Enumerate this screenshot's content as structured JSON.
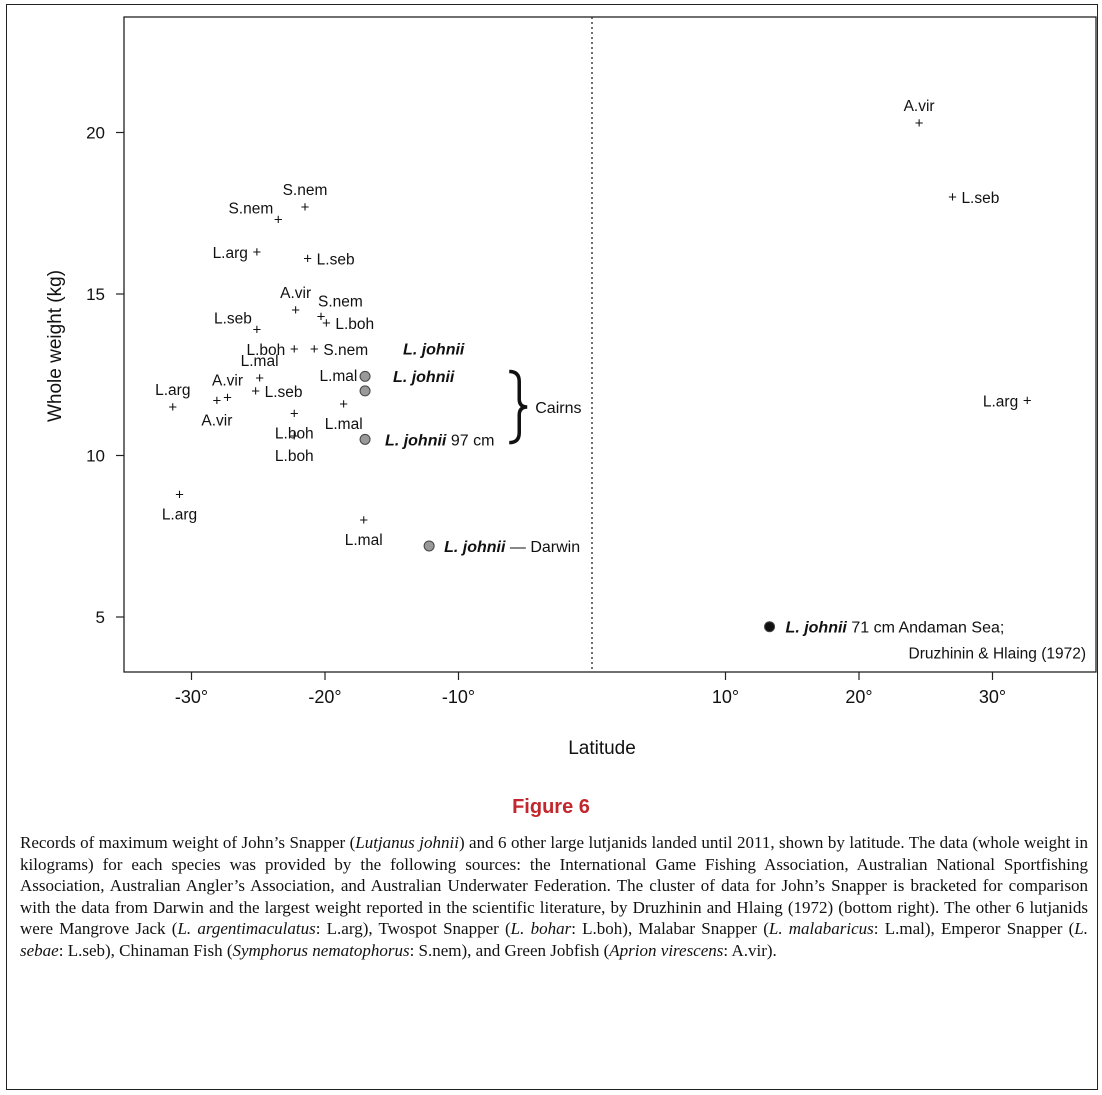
{
  "figure": {
    "title": "Figure 6",
    "caption_parts": [
      {
        "t": "Records of maximum weight of John’s Snapper ("
      },
      {
        "t": "Lutjanus johnii",
        "i": true
      },
      {
        "t": ") and 6 other large lutjanids landed until 2011, shown by latitude. The data (whole weight in kilograms) for each species was provided by the following sources: the International Game Fishing Association, Australian National Sportfishing Association, Australian Angler’s Association, and Australian Underwater Federation. The cluster of data for John’s Snapper is bracketed for comparison with the data from Darwin and the largest weight reported in the scientific literature, by Druzhinin and Hlaing (1972) (bottom right). The other 6 lutjanids were Mangrove Jack ("
      },
      {
        "t": "L. argentimaculatus",
        "i": true
      },
      {
        "t": ": L.arg), Twospot Snapper ("
      },
      {
        "t": "L. bohar",
        "i": true
      },
      {
        "t": ": L.boh), Malabar Snapper ("
      },
      {
        "t": "L. malabaricus",
        "i": true
      },
      {
        "t": ": L.mal), Emperor Snapper ("
      },
      {
        "t": "L. sebae",
        "i": true
      },
      {
        "t": ": L.seb), Chinaman Fish ("
      },
      {
        "t": "Symphorus nematophorus",
        "i": true
      },
      {
        "t": ": S.nem), and Green Jobfish ("
      },
      {
        "t": "Aprion virescens",
        "i": true
      },
      {
        "t": ": A.vir)."
      }
    ]
  },
  "chart_data": {
    "type": "scatter",
    "xlabel": "Latitude",
    "ylabel": "Whole weight (kg)",
    "xlim": [
      -35,
      35
    ],
    "ylim": [
      3.3,
      23
    ],
    "x_ticks": [
      -30,
      -20,
      -10,
      10,
      20,
      30
    ],
    "x_tick_labels": [
      "-30°",
      "-20°",
      "-10°",
      "10°",
      "20°",
      "30°"
    ],
    "y_ticks": [
      5,
      10,
      15,
      20
    ],
    "y_tick_labels": [
      "5",
      "10",
      "15",
      "20"
    ],
    "reference_line_x": 0,
    "grid": false,
    "other_species": [
      {
        "label": "A.vir",
        "x": 24.5,
        "y": 20.3,
        "pos": "above"
      },
      {
        "label": "L.seb",
        "x": 27.0,
        "y": 18.0,
        "pos": "right"
      },
      {
        "label": "L.arg",
        "x": 32.6,
        "y": 11.7,
        "pos": "left"
      },
      {
        "label": "S.nem",
        "x": -21.5,
        "y": 17.7,
        "pos": "above"
      },
      {
        "label": "S.nem",
        "x": -23.5,
        "y": 17.3,
        "pos": "left-up"
      },
      {
        "label": "L.arg",
        "x": -25.1,
        "y": 16.3,
        "pos": "left"
      },
      {
        "label": "L.seb",
        "x": -21.3,
        "y": 16.1,
        "pos": "right"
      },
      {
        "label": "A.vir",
        "x": -22.2,
        "y": 14.5,
        "pos": "above"
      },
      {
        "label": "S.nem",
        "x": -20.3,
        "y": 14.3,
        "pos": "right-up"
      },
      {
        "label": "L.boh",
        "x": -19.9,
        "y": 14.1,
        "pos": "right"
      },
      {
        "label": "L.seb",
        "x": -25.1,
        "y": 13.9,
        "pos": "left-up"
      },
      {
        "label": "L.boh",
        "x": -22.3,
        "y": 13.3,
        "pos": "left"
      },
      {
        "label": "S.nem",
        "x": -20.8,
        "y": 13.3,
        "pos": "right"
      },
      {
        "label": "L.mal",
        "x": -24.9,
        "y": 12.4,
        "pos": "above"
      },
      {
        "label": "L.mal",
        "x": -16.9,
        "y": 12.5,
        "pos": "left"
      },
      {
        "label": "A.vir",
        "x": -27.3,
        "y": 11.8,
        "pos": "above"
      },
      {
        "label": "L.seb",
        "x": -25.2,
        "y": 12.0,
        "pos": "right"
      },
      {
        "label": "L.mal",
        "x": -18.6,
        "y": 11.6,
        "pos": "below"
      },
      {
        "label": "L.arg",
        "x": -31.4,
        "y": 11.5,
        "pos": "above"
      },
      {
        "label": "A.vir",
        "x": -28.1,
        "y": 11.7,
        "pos": "below"
      },
      {
        "label": "L.boh",
        "x": -22.3,
        "y": 11.3,
        "pos": "below"
      },
      {
        "label": "L.boh",
        "x": -22.3,
        "y": 10.6,
        "pos": "below"
      },
      {
        "label": "L.arg",
        "x": -30.9,
        "y": 8.8,
        "pos": "below"
      },
      {
        "label": "L.mal",
        "x": -17.1,
        "y": 8.0,
        "pos": "below"
      }
    ],
    "johnii_points": [
      {
        "x": -17.0,
        "y": 12.45,
        "label": "L. johnii",
        "extra": ""
      },
      {
        "x": -17.0,
        "y": 12.0,
        "label": "L. johnii",
        "extra": ""
      },
      {
        "x": -17.0,
        "y": 10.5,
        "label": "L. johnii",
        "extra": "97 cm"
      },
      {
        "x": -12.2,
        "y": 7.2,
        "label": "L. johnii",
        "extra": "— Darwin"
      },
      {
        "x": 13.3,
        "y": 4.7,
        "label": "L. johnii",
        "extra": "71 cm  Andaman Sea;",
        "note": "Druzhinin & Hlaing (1972)",
        "dark": true
      }
    ],
    "bracket": {
      "label": "Cairns",
      "y_top": 12.6,
      "y_bottom": 10.4,
      "x": -5.6
    }
  }
}
